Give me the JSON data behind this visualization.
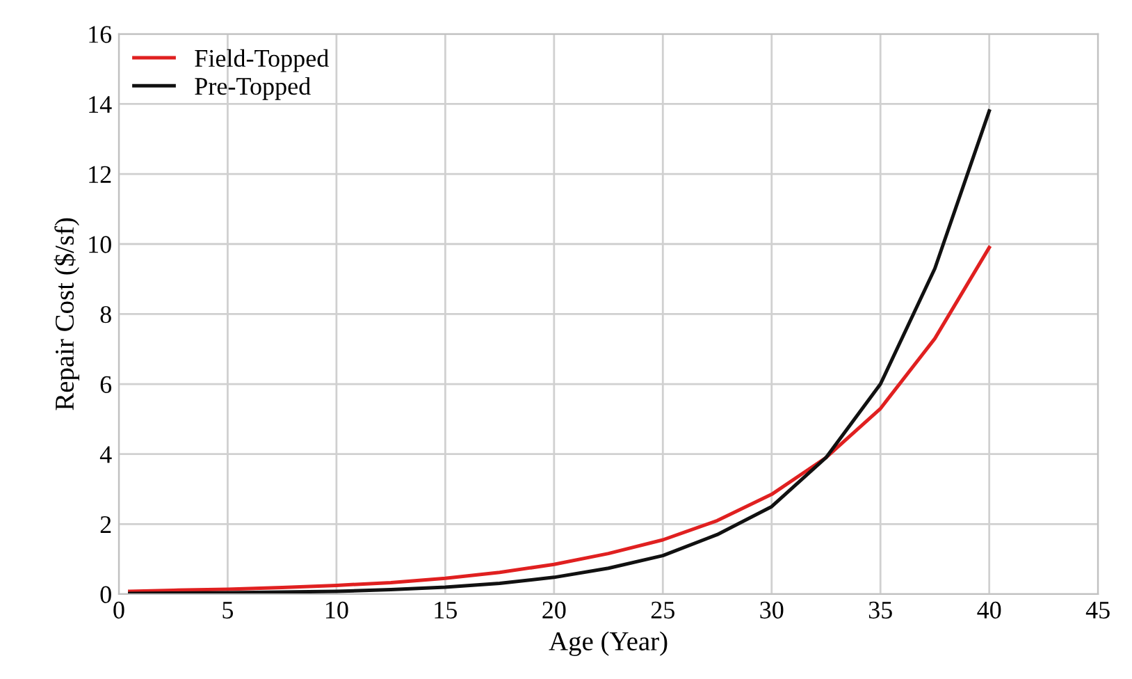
{
  "chart_data": {
    "type": "line",
    "xlabel": "Age (Year)",
    "ylabel": "Repair Cost ($/sf)",
    "xlim": [
      0,
      45
    ],
    "xticks": [
      0,
      5,
      10,
      15,
      20,
      25,
      30,
      35,
      40,
      45
    ],
    "ylim": [
      0,
      16
    ],
    "yticks": [
      0,
      2,
      4,
      6,
      8,
      10,
      12,
      14,
      16
    ],
    "grid": true,
    "legend": "top left",
    "marker": "none",
    "line_style": "solid",
    "series": [
      {
        "name": "Field-Topped",
        "color": "#e02020",
        "x": [
          0.5,
          2.5,
          5,
          7.5,
          10,
          12.5,
          15,
          17.5,
          20,
          22.5,
          25,
          27.5,
          30,
          32.5,
          35,
          37.5,
          40
        ],
        "values": [
          0.08,
          0.11,
          0.14,
          0.19,
          0.25,
          0.33,
          0.45,
          0.62,
          0.85,
          1.16,
          1.55,
          2.1,
          2.85,
          3.9,
          5.3,
          7.3,
          9.9
        ]
      },
      {
        "name": "Pre-Topped",
        "color": "#111111",
        "x": [
          0.5,
          2.5,
          5,
          7.5,
          10,
          12.5,
          15,
          17.5,
          20,
          22.5,
          25,
          27.5,
          30,
          32.5,
          35,
          37.5,
          40
        ],
        "values": [
          0.02,
          0.03,
          0.04,
          0.06,
          0.08,
          0.13,
          0.2,
          0.31,
          0.48,
          0.74,
          1.1,
          1.7,
          2.5,
          3.9,
          6.0,
          9.3,
          13.8
        ]
      }
    ]
  }
}
